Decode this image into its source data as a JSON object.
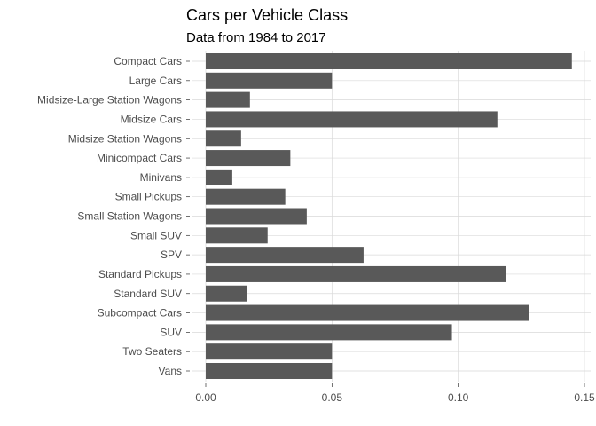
{
  "chart_data": {
    "type": "bar",
    "orientation": "horizontal",
    "title": "Cars per Vehicle Class",
    "subtitle": "Data from 1984 to 2017",
    "xlabel": "",
    "ylabel": "",
    "categories": [
      "Compact Cars",
      "Large Cars",
      "Midsize-Large Station Wagons",
      "Midsize Cars",
      "Midsize Station Wagons",
      "Minicompact Cars",
      "Minivans",
      "Small Pickups",
      "Small Station Wagons",
      "Small SUV",
      "SPV",
      "Standard Pickups",
      "Standard SUV",
      "Subcompact Cars",
      "SUV",
      "Two Seaters",
      "Vans"
    ],
    "values": [
      0.145,
      0.05,
      0.0175,
      0.1155,
      0.014,
      0.0335,
      0.0105,
      0.0315,
      0.04,
      0.0245,
      0.0625,
      0.119,
      0.0165,
      0.128,
      0.0975,
      0.05,
      0.05
    ],
    "xlim": [
      0,
      0.15
    ],
    "xticks": [
      0.0,
      0.05,
      0.1,
      0.15
    ],
    "xtick_labels": [
      "0.00",
      "0.05",
      "0.10",
      "0.15"
    ],
    "grid": true,
    "legend": "none",
    "colors": {
      "bar": "#595959",
      "grid": "#d9d9d9",
      "text": "#4d4d4d",
      "title": "#000000"
    }
  }
}
